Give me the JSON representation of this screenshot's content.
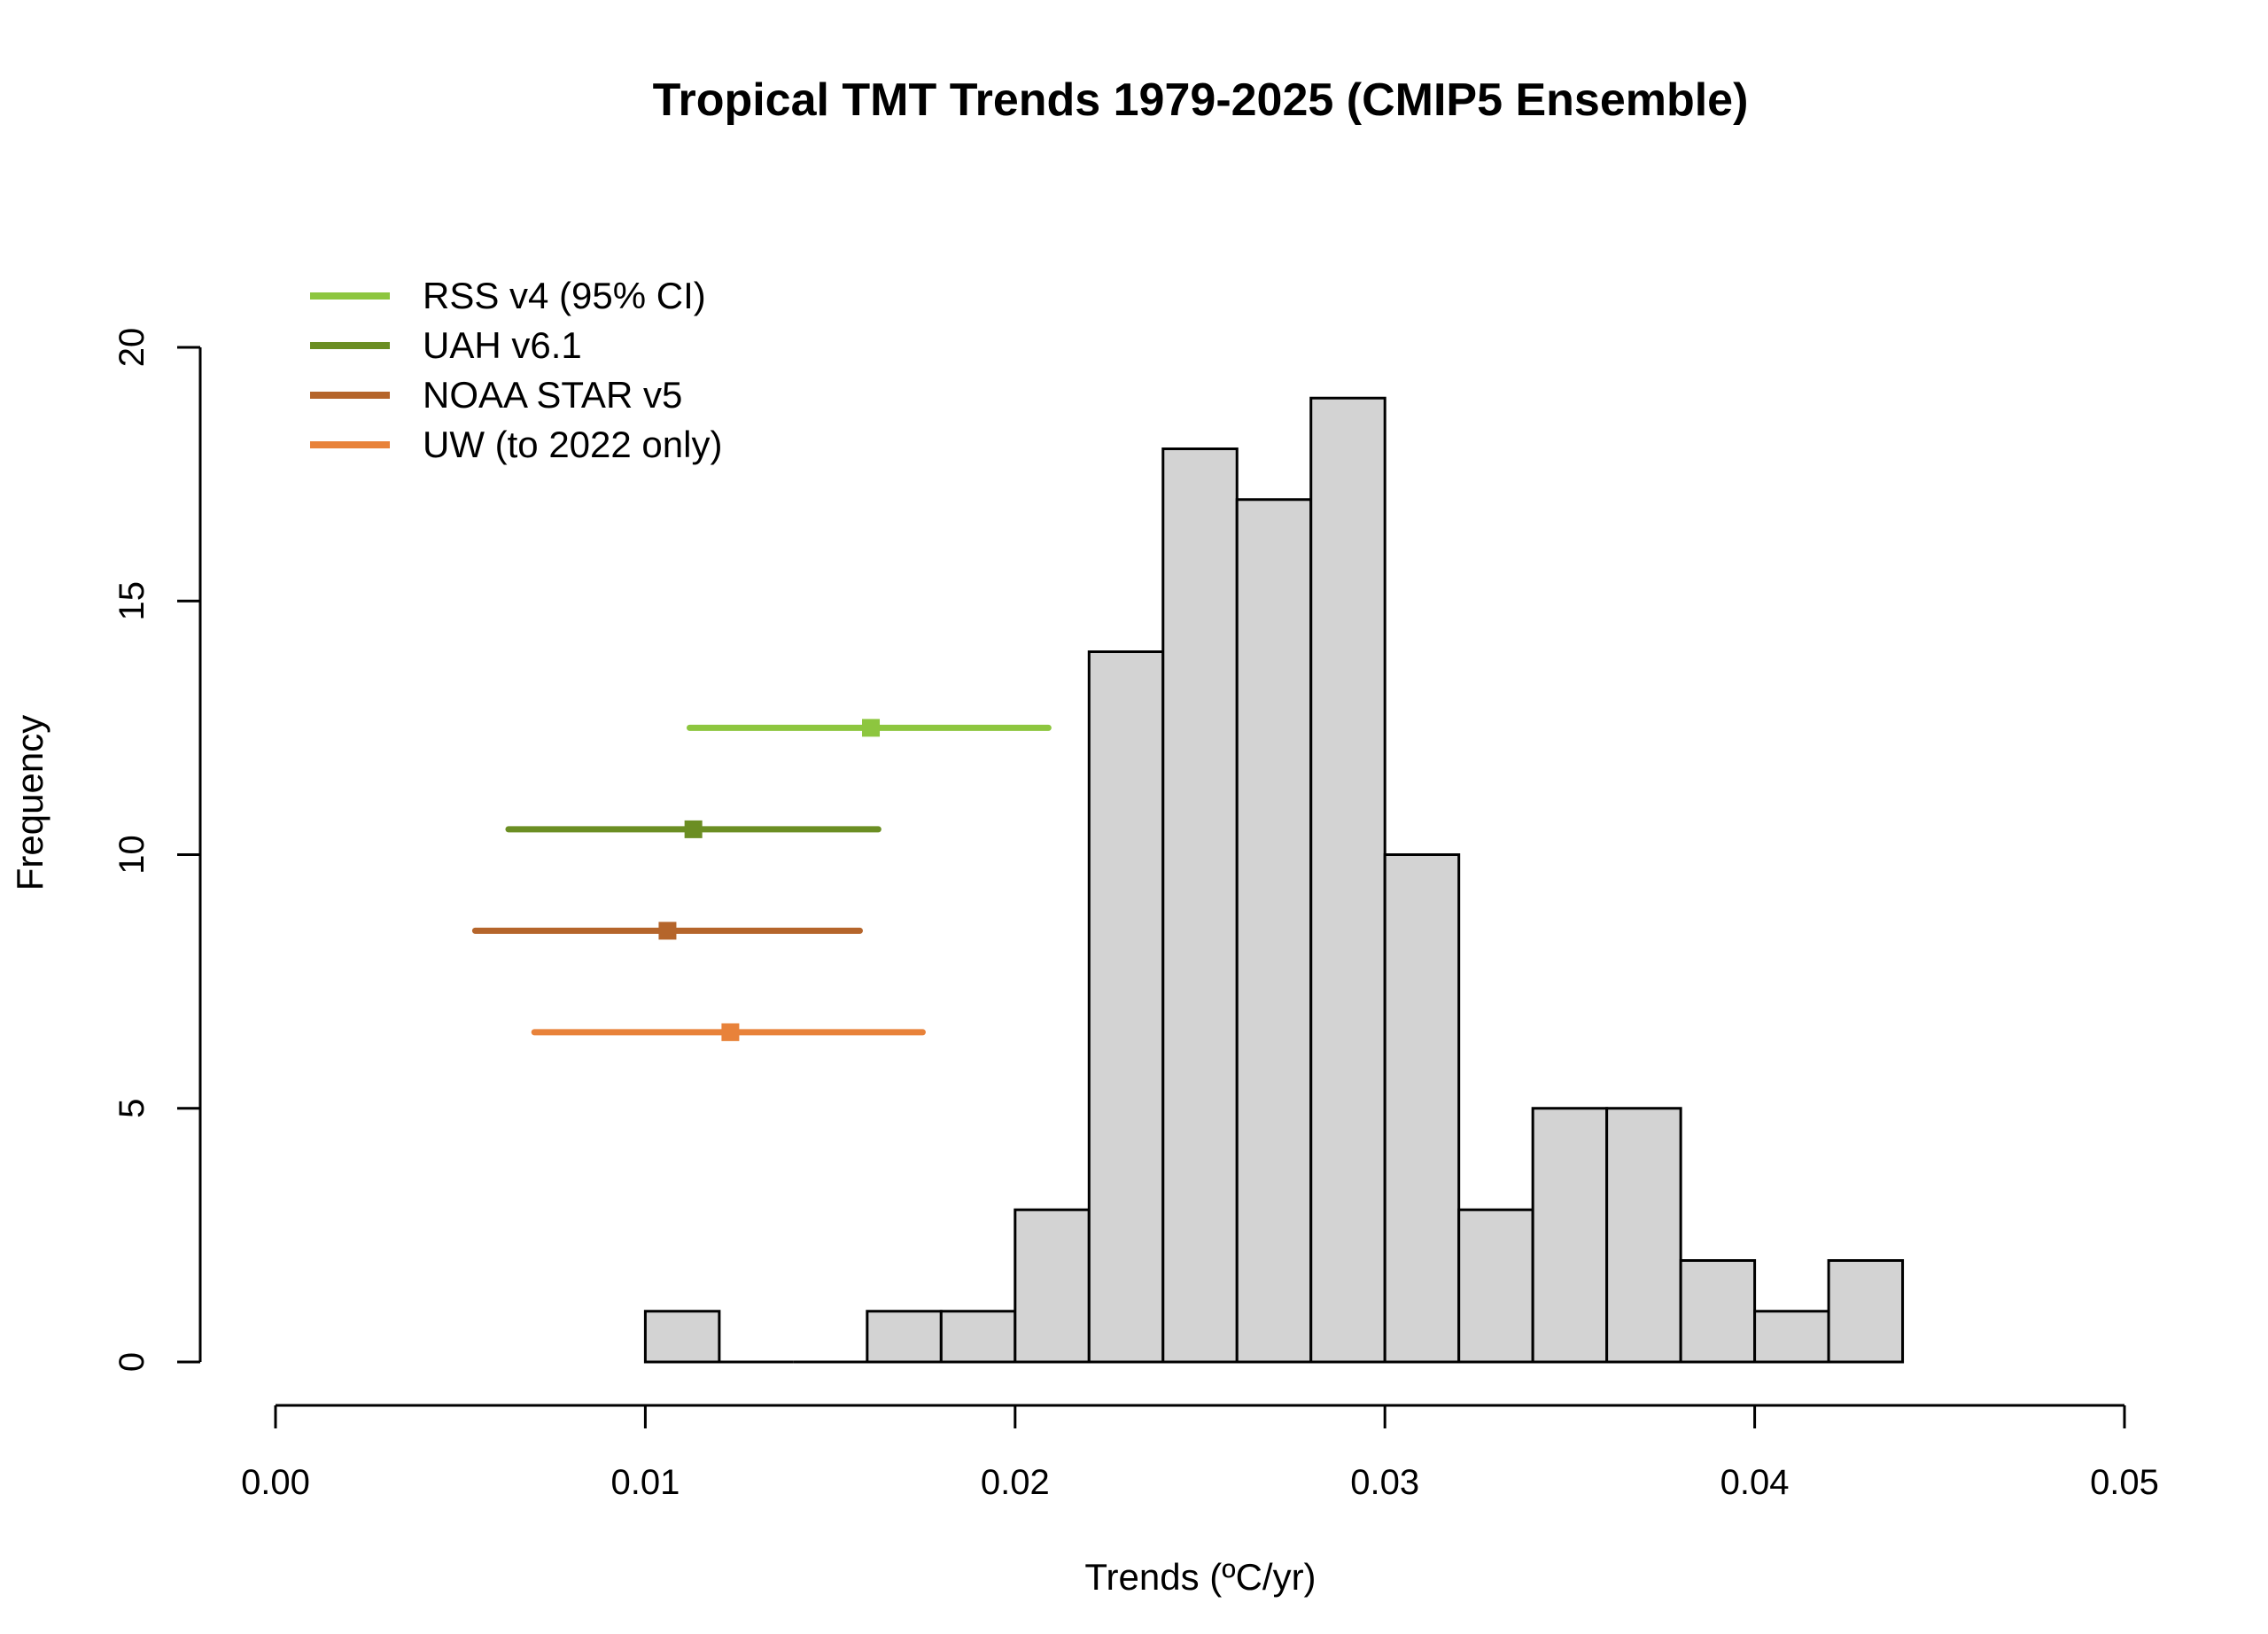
{
  "chart_data": {
    "type": "bar",
    "subtype": "histogram",
    "title": "Tropical TMT Trends 1979-2025 (CMIP5 Ensemble)",
    "xlabel": "Trends (ºC/yr)",
    "ylabel": "Frequency",
    "xlim": [
      0.0,
      0.05
    ],
    "ylim": [
      0,
      20
    ],
    "x_ticks": [
      "0.00",
      "0.01",
      "0.02",
      "0.03",
      "0.04",
      "0.05"
    ],
    "y_ticks": [
      "0",
      "5",
      "10",
      "15",
      "20"
    ],
    "bar_fill": "#d3d3d3",
    "bar_stroke": "#000000",
    "bins": [
      {
        "from": 0.01,
        "to": 0.012,
        "count": 1
      },
      {
        "from": 0.012,
        "to": 0.014,
        "count": 0
      },
      {
        "from": 0.014,
        "to": 0.016,
        "count": 0
      },
      {
        "from": 0.016,
        "to": 0.018,
        "count": 1
      },
      {
        "from": 0.018,
        "to": 0.02,
        "count": 1
      },
      {
        "from": 0.02,
        "to": 0.022,
        "count": 3
      },
      {
        "from": 0.022,
        "to": 0.024,
        "count": 14
      },
      {
        "from": 0.024,
        "to": 0.026,
        "count": 18
      },
      {
        "from": 0.026,
        "to": 0.028,
        "count": 17
      },
      {
        "from": 0.028,
        "to": 0.03,
        "count": 19
      },
      {
        "from": 0.03,
        "to": 0.032,
        "count": 10
      },
      {
        "from": 0.032,
        "to": 0.034,
        "count": 3
      },
      {
        "from": 0.034,
        "to": 0.036,
        "count": 5
      },
      {
        "from": 0.036,
        "to": 0.038,
        "count": 5
      },
      {
        "from": 0.038,
        "to": 0.04,
        "count": 2
      },
      {
        "from": 0.04,
        "to": 0.042,
        "count": 1
      },
      {
        "from": 0.042,
        "to": 0.044,
        "count": 2
      }
    ],
    "observations": [
      {
        "name": "RSS v4 (95% CI)",
        "color": "#8dc63f",
        "trend": 0.0161,
        "ci_low": 0.0112,
        "ci_high": 0.0209,
        "y": 12.5
      },
      {
        "name": "UAH v6.1",
        "color": "#6b8e23",
        "trend": 0.0113,
        "ci_low": 0.0063,
        "ci_high": 0.0163,
        "y": 10.5
      },
      {
        "name": "NOAA STAR v5",
        "color": "#b5652b",
        "trend": 0.0106,
        "ci_low": 0.0054,
        "ci_high": 0.0158,
        "y": 8.5
      },
      {
        "name": "UW (to 2022 only)",
        "color": "#e8823a",
        "trend": 0.0123,
        "ci_low": 0.007,
        "ci_high": 0.0175,
        "y": 6.5
      }
    ],
    "legend_position": "top-left",
    "grid": false
  }
}
